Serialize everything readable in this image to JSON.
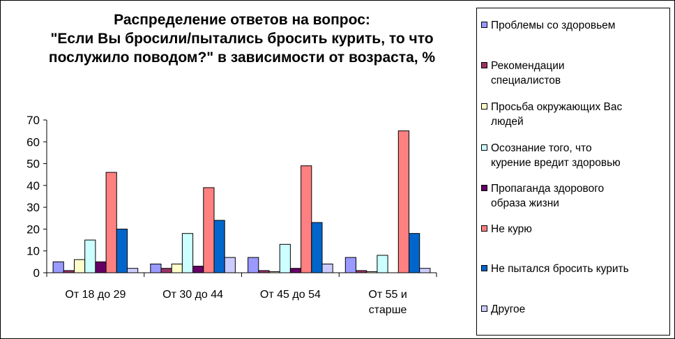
{
  "chart_data": {
    "type": "bar",
    "title_lines": [
      "Распределение ответов на вопрос:",
      "\"Если Вы бросили/пытались бросить курить, то что",
      "послужило поводом?\" в зависимости от возраста, %"
    ],
    "categories": [
      [
        "От 18 до 29"
      ],
      [
        "От 30 до 44"
      ],
      [
        "От 45 до 54"
      ],
      [
        "От 55 и",
        "старше"
      ]
    ],
    "ylim": [
      0,
      70
    ],
    "yticks": [
      0,
      10,
      20,
      30,
      40,
      50,
      60,
      70
    ],
    "grid": false,
    "legend_position": "right",
    "series": [
      {
        "name": "Проблемы со здоровьем",
        "color": "#9999ff",
        "values": [
          5,
          4,
          7,
          7
        ]
      },
      {
        "name": "Рекомендации специалистов",
        "color": "#993366",
        "values": [
          1,
          2,
          1,
          1
        ]
      },
      {
        "name": "Просьба окружающих Вас людей",
        "color": "#ffffcc",
        "values": [
          6,
          4,
          0.5,
          0.5
        ]
      },
      {
        "name": "Осознание того, что курение вредит здоровью",
        "color": "#ccffff",
        "values": [
          15,
          18,
          13,
          8
        ]
      },
      {
        "name": "Пропаганда здорового образа жизни",
        "color": "#660066",
        "values": [
          5,
          3,
          2,
          0
        ]
      },
      {
        "name": "Не курю",
        "color": "#ff8080",
        "values": [
          46,
          39,
          49,
          65
        ]
      },
      {
        "name": "Не пытался бросить курить",
        "color": "#0066cc",
        "values": [
          20,
          24,
          23,
          18
        ]
      },
      {
        "name": "Другое",
        "color": "#ccccff",
        "values": [
          2,
          7,
          4,
          2
        ]
      }
    ]
  },
  "legend": {
    "items": [
      {
        "lines": [
          "Проблемы со здоровьем"
        ]
      },
      {
        "lines": [
          "Рекомендации",
          "специалистов"
        ]
      },
      {
        "lines": [
          "Просьба окружающих Вас",
          "людей"
        ]
      },
      {
        "lines": [
          "Осознание того, что",
          "курение вредит здоровью"
        ]
      },
      {
        "lines": [
          "Пропаганда здорового",
          "образа жизни"
        ]
      },
      {
        "lines": [
          "Не курю"
        ]
      },
      {
        "lines": [
          "Не пытался бросить курить"
        ]
      },
      {
        "lines": [
          "Другое"
        ]
      }
    ]
  }
}
